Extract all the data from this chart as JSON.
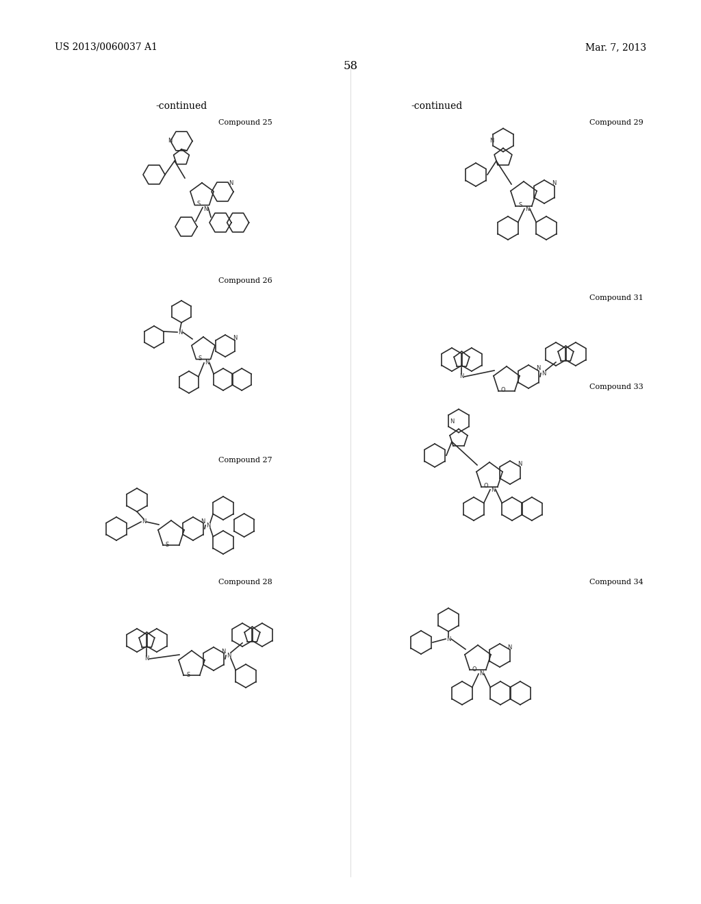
{
  "page_number": "58",
  "header_left": "US 2013/0060037 A1",
  "header_right": "Mar. 7, 2013",
  "continued_left": "-continued",
  "continued_right": "-continued",
  "background_color": "#ffffff",
  "text_color": "#000000",
  "compounds": [
    {
      "label": "Compound 25",
      "col": 0,
      "row": 0
    },
    {
      "label": "Compound 26",
      "col": 0,
      "row": 1
    },
    {
      "label": "Compound 27",
      "col": 0,
      "row": 2
    },
    {
      "label": "Compound 28",
      "col": 0,
      "row": 3
    },
    {
      "label": "Compound 29",
      "col": 1,
      "row": 0
    },
    {
      "label": "Compound 31",
      "col": 1,
      "row": 1
    },
    {
      "label": "Compound 33",
      "col": 1,
      "row": 2
    },
    {
      "label": "Compound 34",
      "col": 1,
      "row": 3
    }
  ]
}
